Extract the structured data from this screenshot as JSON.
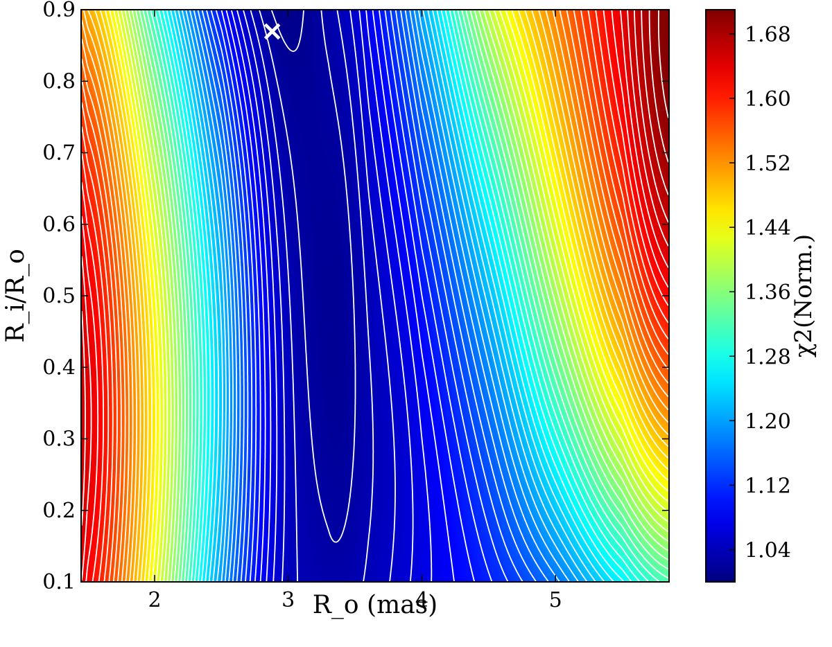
{
  "chart_data": {
    "type": "heatmap",
    "title": "",
    "xlabel": "R_o (mas)",
    "ylabel": "R_i/R_o",
    "xlim": [
      1.45,
      5.85
    ],
    "ylim": [
      0.1,
      0.9
    ],
    "x_ticks": [
      2,
      3,
      4,
      5
    ],
    "x_tick_labels": [
      "2",
      "3",
      "4",
      "5"
    ],
    "y_ticks": [
      0.1,
      0.2,
      0.3,
      0.4,
      0.5,
      0.6,
      0.7,
      0.8,
      0.9
    ],
    "y_tick_labels": [
      "0.1",
      "0.2",
      "0.3",
      "0.4",
      "0.5",
      "0.6",
      "0.7",
      "0.8",
      "0.9"
    ],
    "colorbar": {
      "label": "χ2(Norm.)",
      "range": [
        1.0,
        1.71
      ],
      "ticks": [
        1.04,
        1.12,
        1.2,
        1.28,
        1.36,
        1.44,
        1.52,
        1.6,
        1.68
      ],
      "tick_labels": [
        "1.04",
        "1.12",
        "1.20",
        "1.28",
        "1.36",
        "1.44",
        "1.52",
        "1.60",
        "1.68"
      ],
      "colormap": "jet"
    },
    "contours": {
      "color": "#ffffff",
      "levels_step": 0.0125,
      "count": 56
    },
    "minimum_marker": {
      "x": 2.88,
      "y": 0.87,
      "symbol": "×",
      "color": "#ffffff"
    },
    "grid": false,
    "legend": "none",
    "surface_samples": {
      "x": [
        1.5,
        2.0,
        2.5,
        2.9,
        3.3,
        3.6,
        4.0,
        4.5,
        5.0,
        5.5,
        5.85
      ],
      "rows": [
        {
          "y": 0.1,
          "values": [
            1.62,
            1.43,
            1.2,
            1.06,
            1.03,
            1.04,
            1.07,
            1.11,
            1.17,
            1.26,
            1.32
          ]
        },
        {
          "y": 0.5,
          "values": [
            1.63,
            1.44,
            1.22,
            1.06,
            1.015,
            1.04,
            1.1,
            1.22,
            1.38,
            1.53,
            1.62
          ]
        },
        {
          "y": 0.9,
          "values": [
            1.5,
            1.3,
            1.1,
            1.01,
            1.03,
            1.08,
            1.21,
            1.4,
            1.53,
            1.64,
            1.71
          ]
        }
      ]
    }
  }
}
